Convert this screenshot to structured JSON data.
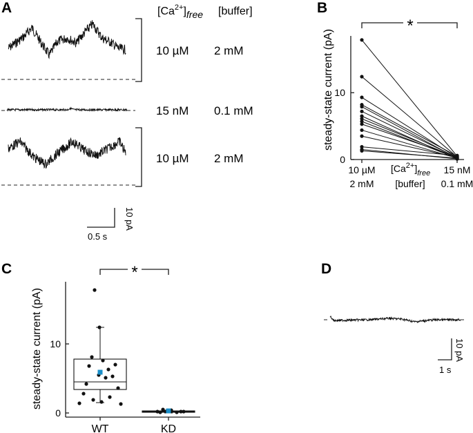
{
  "panel_labels": {
    "a": "A",
    "b": "B",
    "c": "C",
    "d": "D"
  },
  "panel_a": {
    "header_ca": "[Ca",
    "header_ca_sup": "2+",
    "header_ca_close": "]",
    "header_ca_sub": "free",
    "header_buffer": "[buffer]",
    "rows": [
      {
        "ca": "10 µM",
        "buffer": "2 mM"
      },
      {
        "ca": "15 nM",
        "buffer": "0.1 mM"
      },
      {
        "ca": "10 µM",
        "buffer": "2 mM"
      }
    ],
    "scale_y": "10 pA",
    "scale_x": "0.5 s"
  },
  "panel_d": {
    "scale_y": "10 pA",
    "scale_x": "1 s"
  },
  "chart_data": [
    {
      "id": "B",
      "type": "line",
      "ylabel": "steady-state current (pA)",
      "ylim": [
        0,
        18.5
      ],
      "yticks": [
        0,
        10
      ],
      "x_categories": [
        {
          "line1": "10 µM",
          "line2": "2 mM"
        },
        {
          "line1": "15 nM",
          "line2": "0.1 mM"
        }
      ],
      "middle_label": {
        "ca": "[Ca",
        "sup": "2+",
        "close": "]",
        "sub": "free",
        "buffer": "[buffer]"
      },
      "significance": "*",
      "pairs": [
        [
          17.9,
          0.5
        ],
        [
          12.4,
          0.4
        ],
        [
          9.3,
          0.3
        ],
        [
          8.2,
          0.5
        ],
        [
          7.9,
          0.2
        ],
        [
          7.2,
          0.3
        ],
        [
          6.5,
          0.1
        ],
        [
          6.1,
          0.3
        ],
        [
          5.7,
          0.2
        ],
        [
          5.3,
          0.4
        ],
        [
          4.4,
          0.2
        ],
        [
          3.5,
          0.3
        ],
        [
          1.9,
          0.6
        ],
        [
          1.5,
          0.1
        ],
        [
          1.3,
          0.2
        ]
      ]
    },
    {
      "id": "C",
      "type": "box",
      "ylabel": "steady-state current (pA)",
      "ylim": [
        -0.3,
        18.5
      ],
      "yticks": [
        0,
        10
      ],
      "categories": [
        "WT",
        "KD"
      ],
      "significance": "*",
      "mean_color": "#1a8fc9",
      "groups": [
        {
          "name": "WT",
          "q1": 3.4,
          "median": 4.5,
          "q3": 7.8,
          "whisker_low": 1.5,
          "whisker_high": 12.4,
          "mean": 5.9,
          "points": [
            17.8,
            12.4,
            8.1,
            7.6,
            7.0,
            6.8,
            6.3,
            5.5,
            5.3,
            5.1,
            4.2,
            3.6,
            2.8,
            2.3,
            1.9,
            1.6,
            1.4,
            1.3
          ]
        },
        {
          "name": "KD",
          "q1": 0.1,
          "median": 0.2,
          "q3": 0.3,
          "whisker_low": 0.0,
          "whisker_high": 0.4,
          "mean": 0.3,
          "points": [
            0.5,
            0.3,
            0.1,
            0.4,
            0.2,
            0.2,
            0.1,
            0.3,
            0.2
          ]
        }
      ]
    }
  ]
}
